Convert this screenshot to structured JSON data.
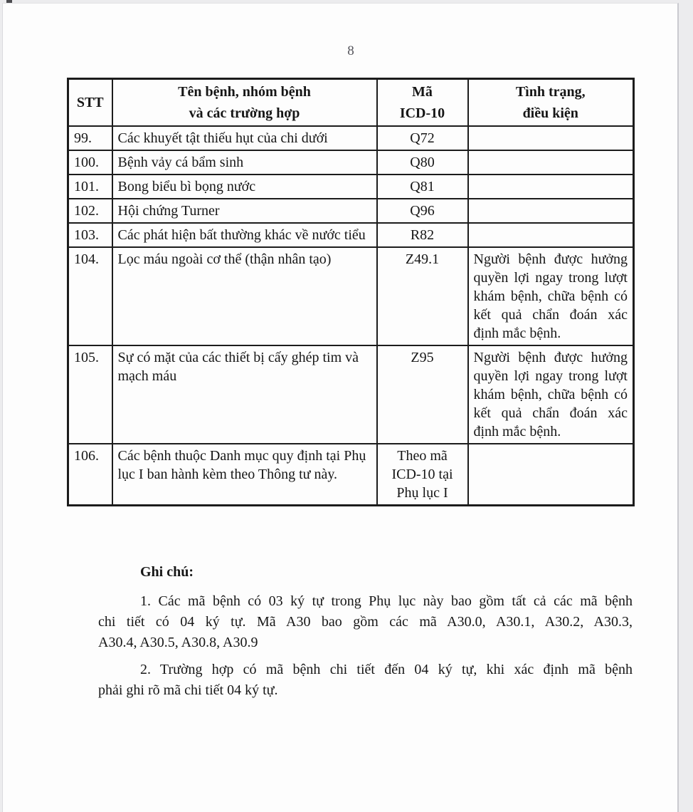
{
  "page": {
    "number": "8"
  },
  "table": {
    "headers": {
      "stt": "STT",
      "name": "Tên bệnh, nhóm bệnh\nvà các trường hợp",
      "code": "Mã\nICD-10",
      "condition": "Tình trạng,\nđiều kiện"
    },
    "rows": [
      {
        "stt": "99.",
        "name": "Các khuyết tật thiếu hụt của chi dưới",
        "code": "Q72",
        "condition": ""
      },
      {
        "stt": "100.",
        "name": "Bệnh vảy cá bẩm sinh",
        "code": "Q80",
        "condition": ""
      },
      {
        "stt": "101.",
        "name": "Bong biểu bì bọng nước",
        "code": "Q81",
        "condition": ""
      },
      {
        "stt": "102.",
        "name": "Hội chứng Turner",
        "code": "Q96",
        "condition": ""
      },
      {
        "stt": "103.",
        "name": "Các phát hiện bất thường khác về nước tiểu",
        "code": "R82",
        "condition": ""
      },
      {
        "stt": "104.",
        "name": "Lọc máu ngoài cơ thể (thận nhân tạo)",
        "code": "Z49.1",
        "condition": "Người bệnh được hưởng quyền lợi ngay trong lượt khám bệnh, chữa bệnh có kết quả chẩn đoán xác định mắc bệnh."
      },
      {
        "stt": "105.",
        "name": "Sự có mặt của các thiết bị cấy ghép tim và mạch máu",
        "code": "Z95",
        "condition": "Người bệnh được hưởng quyền lợi ngay trong lượt khám bệnh, chữa bệnh có kết quả chẩn đoán xác định mắc bệnh."
      },
      {
        "stt": "106.",
        "name": "Các bệnh thuộc Danh mục quy định tại Phụ lục I ban hành kèm theo Thông tư này.",
        "code": "Theo mã\nICD-10 tại\nPhụ lục I",
        "condition": ""
      }
    ]
  },
  "notes": {
    "title": "Ghi chú:",
    "items": [
      {
        "lines": [
          "1. Các mã bệnh có 03 ký tự trong Phụ lục này bao gồm tất cả các mã bệnh",
          "chi tiết có 04 ký tự. Mã A30 bao gồm các mã A30.0, A30.1, A30.2, A30.3,",
          "A30.4, A30.5, A30.8, A30.9"
        ]
      },
      {
        "lines": [
          "2. Trường hợp có mã bệnh chi tiết đến 04 ký tự, khi xác định mã bệnh",
          "phải ghi rõ mã chi tiết 04 ký tự."
        ]
      }
    ]
  },
  "colors": {
    "text": "#161616",
    "border": "#1c1c1c",
    "page_bg": "#fdfdfd",
    "surround_bg": "#ececee",
    "page_number": "#55555c"
  }
}
